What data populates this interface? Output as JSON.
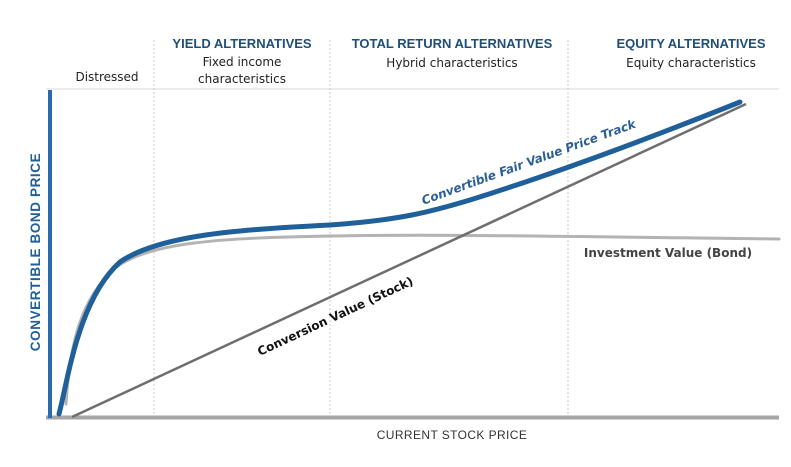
{
  "zones": [
    {
      "title": "",
      "subtitle": [
        "Distressed"
      ]
    },
    {
      "title": "YIELD ALTERNATIVES",
      "subtitle": [
        "Fixed income",
        "characteristics"
      ]
    },
    {
      "title": "TOTAL RETURN ALTERNATIVES",
      "subtitle": [
        "Hybrid characteristics"
      ]
    },
    {
      "title": "EQUITY ALTERNATIVES",
      "subtitle": [
        "Equity characteristics"
      ]
    }
  ],
  "axes": {
    "y_title": "CONVERTIBLE BOND PRICE",
    "x_title": "CURRENT  STOCK PRICE"
  },
  "curves": {
    "fair_value": "Convertible Fair Value Price Track",
    "conversion": "Conversion Value (Stock)",
    "investment": "Investment Value (Bond)"
  },
  "colors": {
    "fair_value": "#1f5f9a",
    "investment": "#b3b3b3",
    "conversion": "#6e6e6e",
    "axis": "#a6a6a6",
    "y_axis": "#2a6bb0",
    "divider": "#c8c8c8",
    "zone_title": "#1f4e79"
  }
}
